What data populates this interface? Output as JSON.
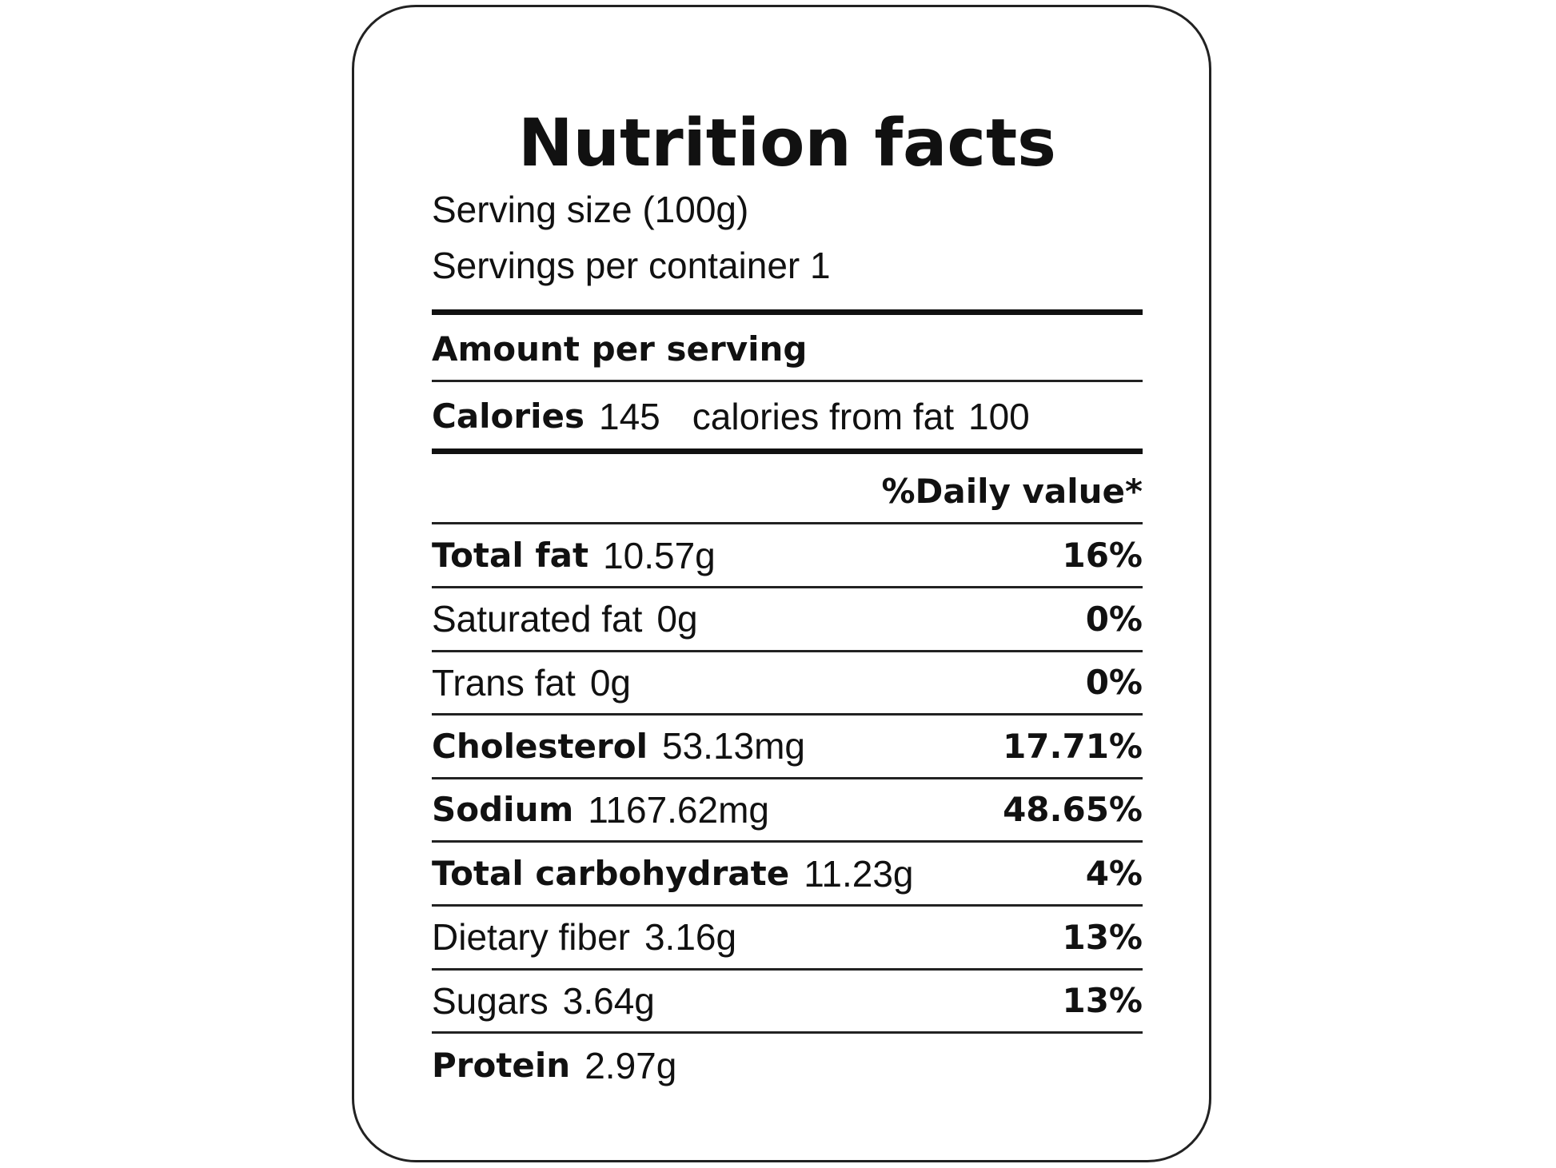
{
  "title": "Nutrition facts",
  "serving_size": "Serving size (100g)",
  "servings_per_container": "Servings per container 1",
  "amount_per_serving": "Amount per serving",
  "calories": {
    "label": "Calories",
    "value": "145",
    "from_fat_label": "calories from fat",
    "from_fat_value": "100"
  },
  "daily_value_header": "%Daily value*",
  "nutrients": [
    {
      "name": "Total fat",
      "amount": "10.57g",
      "daily_value": "16%"
    },
    {
      "name": "Saturated fat",
      "amount": "0g",
      "daily_value": "0%"
    },
    {
      "name": "Trans fat",
      "amount": "0g",
      "daily_value": "0%"
    },
    {
      "name": "Cholesterol",
      "amount": "53.13mg",
      "daily_value": "17.71%"
    },
    {
      "name": "Sodium",
      "amount": "1167.62mg",
      "daily_value": "48.65%"
    },
    {
      "name": "Total carbohydrate",
      "amount": "11.23g",
      "daily_value": "4%"
    },
    {
      "name": "Dietary fiber",
      "amount": "3.16g",
      "daily_value": "13%"
    },
    {
      "name": "Sugars",
      "amount": "3.64g",
      "daily_value": "13%"
    },
    {
      "name": "Protein",
      "amount": "2.97g"
    }
  ]
}
